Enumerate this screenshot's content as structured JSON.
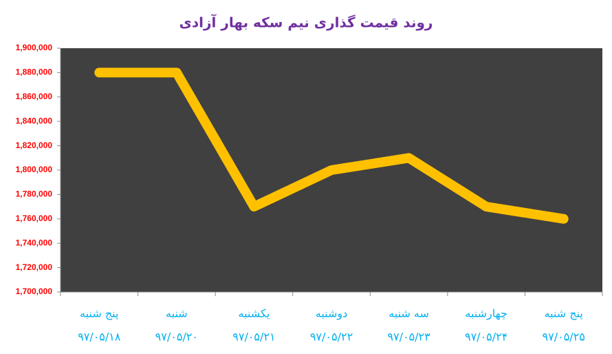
{
  "chart_data": {
    "type": "line",
    "title": "روند قیمت گذاری نیم سکه بهار آزادی",
    "categories": [
      [
        "پنج شنبه",
        "۹۷/۰۵/۱۸"
      ],
      [
        "شنبه",
        "۹۷/۰۵/۲۰"
      ],
      [
        "یکشنبه",
        "۹۷/۰۵/۲۱"
      ],
      [
        "دوشنبه",
        "۹۷/۰۵/۲۲"
      ],
      [
        "سه شنبه",
        "۹۷/۰۵/۲۳"
      ],
      [
        "چهارشنبه",
        "۹۷/۰۵/۲۴"
      ],
      [
        "پنج شنبه",
        "۹۷/۰۵/۲۵"
      ]
    ],
    "values": [
      1880000,
      1880000,
      1770000,
      1800000,
      1810000,
      1770000,
      1760000
    ],
    "color": "#ffc000",
    "ylim": [
      1700000,
      1900000
    ],
    "yticks": [
      {
        "value": 1700000,
        "label": "1,700,000"
      },
      {
        "value": 1720000,
        "label": "1,720,000"
      },
      {
        "value": 1740000,
        "label": "1,740,000"
      },
      {
        "value": 1760000,
        "label": "1,760,000"
      },
      {
        "value": 1780000,
        "label": "1,780,000"
      },
      {
        "value": 1800000,
        "label": "1,800,000"
      },
      {
        "value": 1820000,
        "label": "1,820,000"
      },
      {
        "value": 1840000,
        "label": "1,840,000"
      },
      {
        "value": 1860000,
        "label": "1,860,000"
      },
      {
        "value": 1880000,
        "label": "1,880,000"
      },
      {
        "value": 1900000,
        "label": "1,900,000"
      }
    ],
    "grid": false
  }
}
